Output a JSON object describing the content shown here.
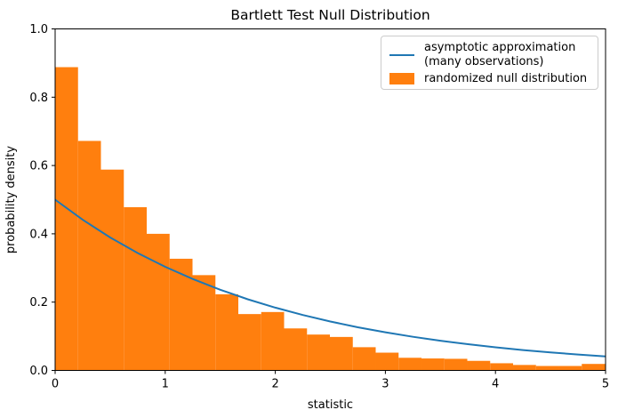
{
  "title": "Bartlett Test Null Distribution",
  "colors": {
    "curve_blue": "#1f77b4",
    "hist_orange": "#ff7f0e",
    "spine_black": "#000000",
    "legend_border": "#cccccc"
  },
  "legend": {
    "item1_line1": "asymptotic approximation",
    "item1_line2": "(many observations)",
    "item2_label": "randomized null distribution"
  },
  "chart_data": {
    "type": "bar",
    "subtype": "histogram_with_line_overlay",
    "title": "Bartlett Test Null Distribution",
    "xlabel": "statistic",
    "ylabel": "probability density",
    "xlim": [
      0,
      5
    ],
    "ylim": [
      0.0,
      1.0
    ],
    "grid": false,
    "legend_position": "upper right",
    "x_ticks": {
      "values": [
        0,
        1,
        2,
        3,
        4,
        5
      ],
      "labels": [
        "0",
        "1",
        "2",
        "3",
        "4",
        "5"
      ]
    },
    "y_ticks": {
      "values": [
        0.0,
        0.2,
        0.4,
        0.6,
        0.8,
        1.0
      ],
      "labels": [
        "0.0",
        "0.2",
        "0.4",
        "0.6",
        "0.8",
        "1.0"
      ]
    },
    "histogram": {
      "name": "randomized null distribution",
      "color": "#ff7f0e",
      "bin_start": 0,
      "bin_width": 0.208,
      "densities": [
        0.888,
        0.672,
        0.588,
        0.478,
        0.4,
        0.327,
        0.279,
        0.223,
        0.165,
        0.171,
        0.123,
        0.105,
        0.098,
        0.068,
        0.052,
        0.037,
        0.035,
        0.034,
        0.028,
        0.021,
        0.016,
        0.013,
        0.013,
        0.019,
        0.019
      ]
    },
    "curve": {
      "name": "asymptotic approximation (many observations)",
      "color": "#1f77b4",
      "x": [
        0,
        0.25,
        0.5,
        0.75,
        1.0,
        1.25,
        1.5,
        1.75,
        2.0,
        2.25,
        2.5,
        2.75,
        3.0,
        3.25,
        3.5,
        3.75,
        4.0,
        4.25,
        4.5,
        4.75,
        5.0
      ],
      "y": [
        0.5,
        0.4412,
        0.3894,
        0.3437,
        0.3033,
        0.2676,
        0.2362,
        0.2084,
        0.1839,
        0.1623,
        0.1433,
        0.1264,
        0.1116,
        0.0984,
        0.0869,
        0.0767,
        0.0677,
        0.0597,
        0.0527,
        0.0465,
        0.041
      ]
    }
  }
}
